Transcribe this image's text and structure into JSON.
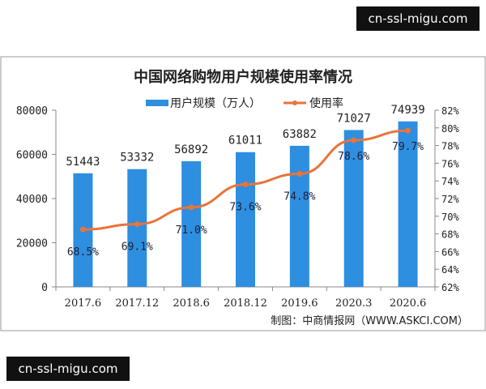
{
  "watermarks": [
    "cn-ssl-migu.com",
    "cn-ssl-migu.com"
  ],
  "chart_data": {
    "type": "bar+line",
    "title": "中国网络购物用户规模使用率情况",
    "categories": [
      "2017.6",
      "2017.12",
      "2018.6",
      "2018.12",
      "2019.6",
      "2020.3",
      "2020.6"
    ],
    "series": [
      {
        "name": "用户规模（万人）",
        "type": "bar",
        "axis": "left",
        "values": [
          51443,
          53332,
          56892,
          61011,
          63882,
          71027,
          74939
        ],
        "labels": [
          "51443",
          "53332",
          "56892",
          "61011",
          "63882",
          "71027",
          "74939"
        ],
        "color": "#2e8ee0"
      },
      {
        "name": "使用率",
        "type": "line",
        "axis": "right",
        "values": [
          68.5,
          69.1,
          71.0,
          73.6,
          74.8,
          78.6,
          79.7
        ],
        "labels": [
          "68.5%",
          "69.1%",
          "71.0%",
          "73.6%",
          "74.8%",
          "78.6%",
          "79.7%"
        ],
        "color": "#e8743b"
      }
    ],
    "left_axis": {
      "ylim": [
        0,
        80000
      ],
      "ticks": [
        "0",
        "20000",
        "40000",
        "60000",
        "80000"
      ]
    },
    "right_axis": {
      "ylim": [
        62,
        82
      ],
      "ticks": [
        "62%",
        "64%",
        "66%",
        "68%",
        "70%",
        "72%",
        "74%",
        "76%",
        "78%",
        "80%",
        "82%"
      ]
    },
    "legend_position": "top",
    "grid": false,
    "source": "制图：中商情报网（WWW.ASKCI.COM）"
  }
}
